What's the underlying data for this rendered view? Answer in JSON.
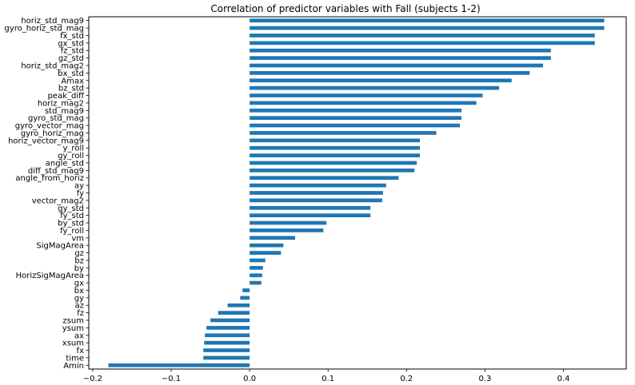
{
  "chart_data": {
    "type": "bar",
    "orientation": "horizontal",
    "title": "Correlation of predictor variables with Fall (subjects 1-2)",
    "xlabel": "",
    "ylabel": "",
    "xlim": [
      -0.205,
      0.48
    ],
    "xticks": [
      -0.2,
      -0.1,
      0.0,
      0.1,
      0.2,
      0.3,
      0.4
    ],
    "xtick_labels": [
      "−0.2",
      "−0.1",
      "0.0",
      "0.1",
      "0.2",
      "0.3",
      "0.4"
    ],
    "grid": false,
    "bar_color": "#1f77b4",
    "categories": [
      "horiz_std_mag9",
      "gyro_horiz_std_mag",
      "fx_std",
      "gx_std",
      "fz_std",
      "gz_std",
      "horiz_std_mag2",
      "bx_std",
      "Amax",
      "bz_std",
      "peak_diff",
      "horiz_mag2",
      "std_mag9",
      "gyro_std_mag",
      "gyro_vector_mag",
      "gyro_horiz_mag",
      "horiz_vector_mag9",
      "y_roll",
      "gy_roll",
      "angle_std",
      "diff_std_mag9",
      "angle_from_horiz",
      "ay",
      "fy",
      "vector_mag2",
      "gy_std",
      "fy_std",
      "by_std",
      "fy_roll",
      "vm",
      "SigMagArea",
      "gz",
      "bz",
      "by",
      "HorizSigMagArea",
      "gx",
      "bx",
      "gy",
      "az",
      "fz",
      "zsum",
      "ysum",
      "ax",
      "xsum",
      "fx",
      "time",
      "Amin"
    ],
    "values": [
      0.452,
      0.452,
      0.44,
      0.44,
      0.384,
      0.384,
      0.374,
      0.357,
      0.334,
      0.318,
      0.297,
      0.289,
      0.27,
      0.27,
      0.268,
      0.238,
      0.217,
      0.217,
      0.217,
      0.213,
      0.21,
      0.19,
      0.174,
      0.17,
      0.169,
      0.154,
      0.154,
      0.098,
      0.094,
      0.058,
      0.043,
      0.04,
      0.02,
      0.017,
      0.016,
      0.015,
      -0.009,
      -0.012,
      -0.028,
      -0.04,
      -0.05,
      -0.055,
      -0.057,
      -0.058,
      -0.059,
      -0.059,
      -0.18
    ]
  }
}
